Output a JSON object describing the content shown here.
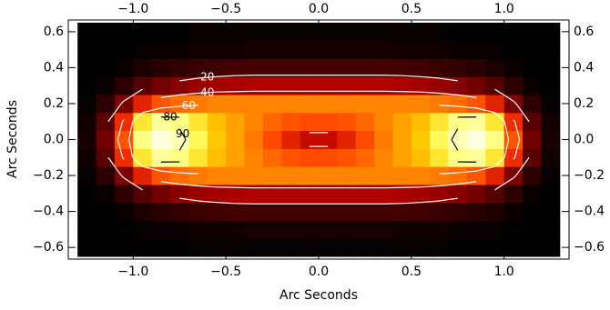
{
  "chart_data": {
    "type": "heatmap",
    "xlabel": "Arc Seconds",
    "ylabel": "Arc Seconds",
    "xlim": [
      -1.35,
      1.35
    ],
    "ylim": [
      -0.665,
      0.665
    ],
    "xticks": [
      {
        "value": -1.0,
        "label": "−1.0"
      },
      {
        "value": -0.5,
        "label": "−0.5"
      },
      {
        "value": 0.0,
        "label": "0.0"
      },
      {
        "value": 0.5,
        "label": "0.5"
      },
      {
        "value": 1.0,
        "label": "1.0"
      }
    ],
    "yticks": [
      {
        "value": -0.6,
        "label": "−0.6"
      },
      {
        "value": -0.4,
        "label": "−0.4"
      },
      {
        "value": -0.2,
        "label": "−0.2"
      },
      {
        "value": 0.0,
        "label": "0.0"
      },
      {
        "value": 0.2,
        "label": "0.2"
      },
      {
        "value": 0.4,
        "label": "0.4"
      },
      {
        "value": 0.6,
        "label": "0.6"
      }
    ],
    "x": [
      -1.25,
      -1.15,
      -1.05,
      -0.95,
      -0.85,
      -0.75,
      -0.65,
      -0.55,
      -0.45,
      -0.35,
      -0.25,
      -0.15,
      -0.05,
      0.05,
      0.15,
      0.25,
      0.35,
      0.45,
      0.55,
      0.65,
      0.75,
      0.85,
      0.95,
      1.05,
      1.15,
      1.25
    ],
    "y": [
      -0.6,
      -0.5,
      -0.4,
      -0.3,
      -0.2,
      -0.1,
      0.0,
      0.1,
      0.2,
      0.3,
      0.4,
      0.5,
      0.6
    ],
    "z": [
      [
        0,
        0,
        0,
        0,
        0,
        0,
        1,
        1,
        1,
        1,
        1,
        1,
        1,
        1,
        1,
        1,
        1,
        1,
        1,
        1,
        0,
        0,
        0,
        0,
        0,
        0
      ],
      [
        0,
        0,
        0,
        1,
        2,
        2,
        3,
        3,
        3,
        4,
        4,
        4,
        4,
        4,
        4,
        4,
        4,
        3,
        3,
        3,
        2,
        2,
        1,
        0,
        0,
        0
      ],
      [
        0,
        0,
        2,
        5,
        7,
        9,
        10,
        11,
        12,
        12,
        12,
        12,
        12,
        12,
        12,
        12,
        12,
        12,
        11,
        10,
        9,
        7,
        5,
        2,
        0,
        0
      ],
      [
        0,
        2,
        8,
        15,
        20,
        24,
        27,
        29,
        30,
        31,
        31,
        31,
        31,
        31,
        31,
        31,
        31,
        30,
        29,
        27,
        24,
        20,
        15,
        8,
        2,
        0
      ],
      [
        1,
        8,
        22,
        40,
        50,
        55,
        58,
        60,
        60,
        60,
        60,
        60,
        60,
        60,
        60,
        60,
        60,
        60,
        60,
        58,
        55,
        50,
        40,
        22,
        8,
        1
      ],
      [
        3,
        16,
        42,
        80,
        90,
        88,
        80,
        72,
        66,
        60,
        54,
        50,
        48,
        48,
        50,
        54,
        60,
        66,
        72,
        80,
        88,
        90,
        80,
        42,
        16,
        3
      ],
      [
        4,
        20,
        50,
        88,
        97,
        93,
        84,
        74,
        66,
        58,
        48,
        40,
        35,
        35,
        40,
        48,
        58,
        66,
        74,
        84,
        93,
        97,
        88,
        50,
        20,
        4
      ],
      [
        3,
        16,
        42,
        80,
        90,
        88,
        80,
        72,
        66,
        60,
        54,
        50,
        48,
        48,
        50,
        54,
        60,
        66,
        72,
        80,
        88,
        90,
        80,
        42,
        16,
        3
      ],
      [
        1,
        8,
        22,
        40,
        50,
        55,
        58,
        60,
        60,
        60,
        60,
        60,
        60,
        60,
        60,
        60,
        60,
        60,
        60,
        58,
        55,
        50,
        40,
        22,
        8,
        1
      ],
      [
        0,
        2,
        8,
        15,
        20,
        24,
        27,
        29,
        30,
        31,
        31,
        31,
        31,
        31,
        31,
        31,
        31,
        30,
        29,
        27,
        24,
        20,
        15,
        8,
        2,
        0
      ],
      [
        0,
        0,
        2,
        5,
        7,
        9,
        10,
        11,
        12,
        12,
        12,
        12,
        12,
        12,
        12,
        12,
        12,
        12,
        11,
        10,
        9,
        7,
        5,
        2,
        0,
        0
      ],
      [
        0,
        0,
        0,
        1,
        2,
        2,
        3,
        3,
        3,
        4,
        4,
        4,
        4,
        4,
        4,
        4,
        4,
        3,
        3,
        3,
        2,
        2,
        1,
        0,
        0,
        0
      ],
      [
        0,
        0,
        0,
        0,
        0,
        0,
        1,
        1,
        1,
        1,
        1,
        1,
        1,
        1,
        1,
        1,
        1,
        1,
        1,
        1,
        0,
        0,
        0,
        0,
        0,
        0
      ]
    ],
    "zlim": [
      0,
      100
    ],
    "colormap": "red-temperature",
    "contour_levels": [
      20,
      40,
      60,
      80,
      90
    ],
    "contour_colors": [
      "#ffffff",
      "#ffffff",
      "#ffffff",
      "#000000",
      "#000000"
    ]
  }
}
